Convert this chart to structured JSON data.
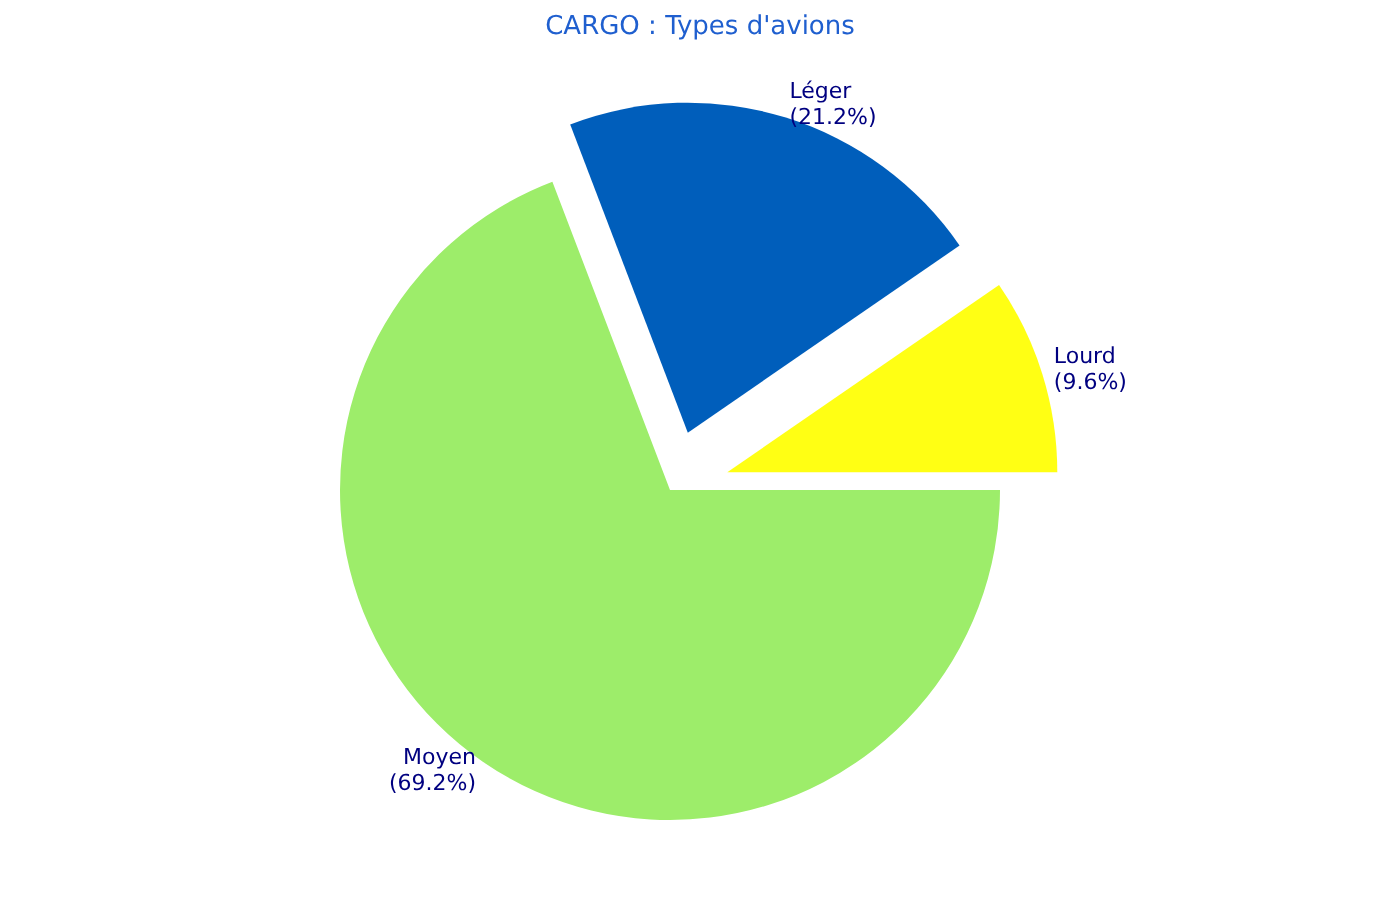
{
  "chart_data": {
    "type": "pie",
    "title": "CARGO : Types d'avions",
    "categories": [
      "Lourd",
      "Léger",
      "Moyen"
    ],
    "values": [
      9.6,
      21.2,
      69.2
    ],
    "value_labels": [
      "(9.6%)",
      "(21.2%)",
      "(69.2%)"
    ],
    "colors": [
      "#ffff14",
      "#005ebb",
      "#9ded6a"
    ],
    "legend": false
  }
}
